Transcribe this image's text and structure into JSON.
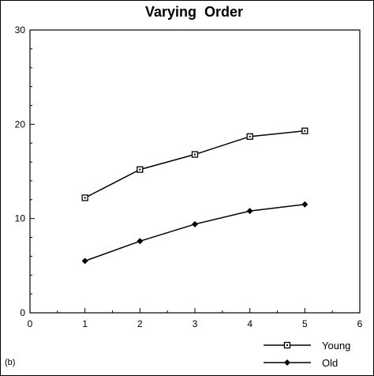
{
  "chart_data": {
    "type": "line",
    "title": "Varying  Order",
    "panel_label": "(b)",
    "xlabel": "",
    "ylabel": "",
    "xlim": [
      0,
      6
    ],
    "ylim": [
      0,
      30
    ],
    "x_ticks": [
      0,
      1,
      2,
      3,
      4,
      5,
      6
    ],
    "y_ticks": [
      0,
      10,
      20,
      30
    ],
    "x": [
      1,
      2,
      3,
      4,
      5
    ],
    "series": [
      {
        "name": "Young",
        "marker": "open-square",
        "color": "#000000",
        "values": [
          12.2,
          15.2,
          16.8,
          18.7,
          19.3
        ]
      },
      {
        "name": "Old",
        "marker": "filled-diamond",
        "color": "#000000",
        "values": [
          5.5,
          7.6,
          9.4,
          10.8,
          11.5
        ]
      }
    ],
    "grid": false,
    "legend_position": "bottom-right"
  }
}
